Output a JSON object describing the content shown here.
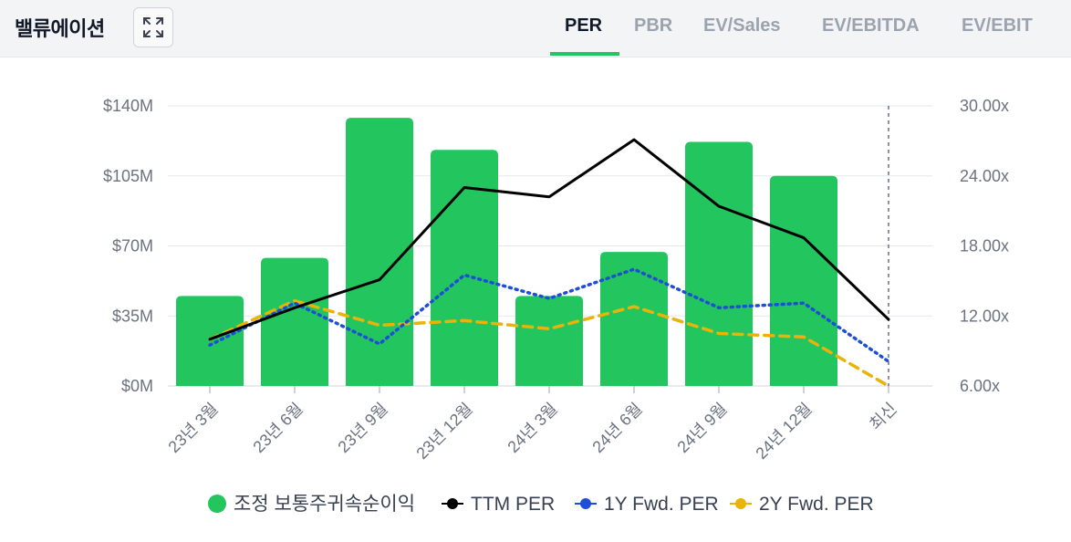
{
  "header": {
    "title": "밸류에이션",
    "expand_icon": "expand-icon",
    "tabs": [
      {
        "label": "PER",
        "active": true
      },
      {
        "label": "PBR",
        "active": false
      },
      {
        "label": "EV/Sales",
        "active": false
      },
      {
        "label": "EV/EBITDA",
        "active": false
      },
      {
        "label": "EV/EBIT",
        "active": false
      }
    ]
  },
  "chart_data": {
    "type": "bar",
    "categories": [
      "23년 3월",
      "23년 6월",
      "23년 9월",
      "23년 12월",
      "24년 3월",
      "24년 6월",
      "24년 9월",
      "24년 12월",
      "최신"
    ],
    "left_axis": {
      "ylim": [
        0,
        140
      ],
      "ticks": [
        0,
        35,
        70,
        105,
        140
      ],
      "tick_labels": [
        "$0M",
        "$35M",
        "$70M",
        "$105M",
        "$140M"
      ]
    },
    "right_axis": {
      "ylim": [
        6,
        30
      ],
      "ticks": [
        6,
        12,
        18,
        24,
        30
      ],
      "tick_labels": [
        "6.00x",
        "12.00x",
        "18.00x",
        "24.00x",
        "30.00x"
      ]
    },
    "bar_series": {
      "name": "조정 보통주귀속순이익",
      "color": "#22c55e",
      "axis": "left",
      "values": [
        45,
        64,
        134,
        118,
        45,
        67,
        122,
        105,
        null
      ]
    },
    "line_series": [
      {
        "name": "TTM PER",
        "color": "#000000",
        "style": "solid",
        "axis": "right",
        "values": [
          10.0,
          12.7,
          15.1,
          23.0,
          22.2,
          27.1,
          21.4,
          18.7,
          11.7
        ]
      },
      {
        "name": "1Y Fwd. PER",
        "color": "#1d4ed8",
        "style": "dotted",
        "axis": "right",
        "values": [
          9.5,
          13.1,
          9.6,
          15.5,
          13.5,
          16.0,
          12.7,
          13.1,
          8.1
        ]
      },
      {
        "name": "2Y Fwd. PER",
        "color": "#eab308",
        "style": "dashed",
        "axis": "right",
        "values": [
          10.0,
          13.3,
          11.2,
          11.6,
          10.9,
          12.8,
          10.5,
          10.2,
          6.0
        ]
      }
    ],
    "latest_marker": "최신",
    "grid": true,
    "legend_position": "bottom"
  }
}
